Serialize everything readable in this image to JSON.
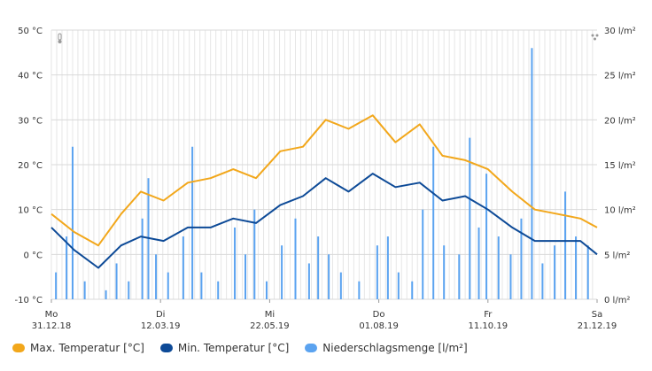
{
  "chart_data": {
    "type": "line",
    "title": "",
    "y_left": {
      "ticks": [
        "50 °C",
        "40 °C",
        "30 °C",
        "20 °C",
        "10 °C",
        "0 °C",
        "-10 °C"
      ],
      "range": [
        -10,
        50
      ]
    },
    "y_right": {
      "ticks": [
        "30 l/m²",
        "25 l/m²",
        "20 l/m²",
        "15 l/m²",
        "10 l/m²",
        "5 l/m²",
        "0 l/m²"
      ],
      "range": [
        0,
        30
      ]
    },
    "x_ticks": [
      {
        "day": "Mo",
        "date": "31.12.18"
      },
      {
        "day": "Di",
        "date": "12.03.19"
      },
      {
        "day": "Mi",
        "date": "22.05.19"
      },
      {
        "day": "Do",
        "date": "01.08.19"
      },
      {
        "day": "Fr",
        "date": "11.10.19"
      },
      {
        "day": "Sa",
        "date": "21.12.19"
      }
    ],
    "x_range": [
      "2018-12-31",
      "2019-12-26"
    ],
    "series": [
      {
        "name": "Max. Temperatur [°C]",
        "kind": "line",
        "color": "#f2a71b",
        "axis": "left",
        "points": [
          [
            "2018-12-31",
            9
          ],
          [
            "2019-01-15",
            5
          ],
          [
            "2019-01-31",
            2
          ],
          [
            "2019-02-15",
            9
          ],
          [
            "2019-02-28",
            14
          ],
          [
            "2019-03-15",
            12
          ],
          [
            "2019-03-31",
            16
          ],
          [
            "2019-04-15",
            17
          ],
          [
            "2019-04-30",
            19
          ],
          [
            "2019-05-15",
            17
          ],
          [
            "2019-05-31",
            23
          ],
          [
            "2019-06-15",
            24
          ],
          [
            "2019-06-30",
            30
          ],
          [
            "2019-07-15",
            28
          ],
          [
            "2019-07-31",
            31
          ],
          [
            "2019-08-15",
            25
          ],
          [
            "2019-08-31",
            29
          ],
          [
            "2019-09-15",
            22
          ],
          [
            "2019-09-30",
            21
          ],
          [
            "2019-10-15",
            19
          ],
          [
            "2019-10-31",
            14
          ],
          [
            "2019-11-15",
            10
          ],
          [
            "2019-11-30",
            9
          ],
          [
            "2019-12-15",
            8
          ],
          [
            "2019-12-26",
            6
          ]
        ]
      },
      {
        "name": "Min. Temperatur [°C]",
        "kind": "line",
        "color": "#0d4a97",
        "axis": "left",
        "points": [
          [
            "2018-12-31",
            6
          ],
          [
            "2019-01-15",
            1
          ],
          [
            "2019-01-31",
            -3
          ],
          [
            "2019-02-15",
            2
          ],
          [
            "2019-02-28",
            4
          ],
          [
            "2019-03-15",
            3
          ],
          [
            "2019-03-31",
            6
          ],
          [
            "2019-04-15",
            6
          ],
          [
            "2019-04-30",
            8
          ],
          [
            "2019-05-15",
            7
          ],
          [
            "2019-05-31",
            11
          ],
          [
            "2019-06-15",
            13
          ],
          [
            "2019-06-30",
            17
          ],
          [
            "2019-07-15",
            14
          ],
          [
            "2019-07-31",
            18
          ],
          [
            "2019-08-15",
            15
          ],
          [
            "2019-08-31",
            16
          ],
          [
            "2019-09-15",
            12
          ],
          [
            "2019-09-30",
            13
          ],
          [
            "2019-10-15",
            10
          ],
          [
            "2019-10-31",
            6
          ],
          [
            "2019-11-15",
            3
          ],
          [
            "2019-11-30",
            3
          ],
          [
            "2019-12-15",
            3
          ],
          [
            "2019-12-26",
            0
          ]
        ]
      },
      {
        "name": "Niederschlagsmenge [l/m²]",
        "kind": "bar",
        "color": "#5ba3f0",
        "axis": "right",
        "points": [
          [
            "2019-01-03",
            3
          ],
          [
            "2019-01-10",
            7
          ],
          [
            "2019-01-14",
            17
          ],
          [
            "2019-01-22",
            2
          ],
          [
            "2019-02-05",
            1
          ],
          [
            "2019-02-12",
            4
          ],
          [
            "2019-02-20",
            2
          ],
          [
            "2019-03-01",
            9
          ],
          [
            "2019-03-05",
            13.5
          ],
          [
            "2019-03-10",
            5
          ],
          [
            "2019-03-18",
            3
          ],
          [
            "2019-03-28",
            7
          ],
          [
            "2019-04-03",
            17
          ],
          [
            "2019-04-09",
            3
          ],
          [
            "2019-04-20",
            2
          ],
          [
            "2019-05-01",
            8
          ],
          [
            "2019-05-08",
            5
          ],
          [
            "2019-05-14",
            10
          ],
          [
            "2019-05-22",
            2
          ],
          [
            "2019-06-01",
            6
          ],
          [
            "2019-06-10",
            9
          ],
          [
            "2019-06-19",
            4
          ],
          [
            "2019-06-25",
            7
          ],
          [
            "2019-07-02",
            5
          ],
          [
            "2019-07-10",
            3
          ],
          [
            "2019-07-22",
            2
          ],
          [
            "2019-08-03",
            6
          ],
          [
            "2019-08-10",
            7
          ],
          [
            "2019-08-17",
            3
          ],
          [
            "2019-08-26",
            2
          ],
          [
            "2019-09-02",
            10
          ],
          [
            "2019-09-09",
            17
          ],
          [
            "2019-09-16",
            6
          ],
          [
            "2019-09-26",
            5
          ],
          [
            "2019-10-03",
            18
          ],
          [
            "2019-10-09",
            8
          ],
          [
            "2019-10-14",
            14
          ],
          [
            "2019-10-22",
            7
          ],
          [
            "2019-10-30",
            5
          ],
          [
            "2019-11-06",
            9
          ],
          [
            "2019-11-13",
            28
          ],
          [
            "2019-11-20",
            4
          ],
          [
            "2019-11-28",
            6
          ],
          [
            "2019-12-05",
            12
          ],
          [
            "2019-12-12",
            7
          ],
          [
            "2019-12-20",
            6
          ]
        ]
      }
    ],
    "legend_placement": "bottom",
    "grid": true
  }
}
